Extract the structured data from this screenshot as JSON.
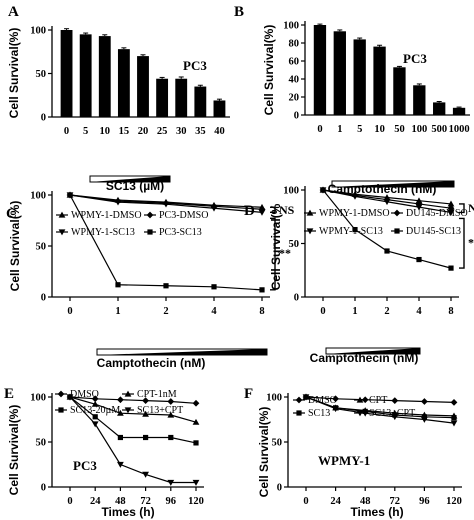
{
  "chart_data": [
    {
      "panel": "A",
      "type": "bar",
      "ylabel": "Cell Survival(%)",
      "xlabel": "SC13 (µM)",
      "annotation": "PC3",
      "categories": [
        "0",
        "5",
        "10",
        "15",
        "20",
        "25",
        "30",
        "35",
        "40"
      ],
      "values": [
        100,
        95,
        93,
        78,
        70,
        44,
        44,
        35,
        19
      ],
      "errors": [
        1.5,
        1.5,
        1.5,
        1.5,
        1.5,
        1.5,
        2,
        1.5,
        1.5
      ],
      "ylim": [
        0,
        100
      ],
      "yticks": [
        "0",
        "50",
        "100"
      ],
      "gradient_bar": true
    },
    {
      "panel": "B",
      "type": "bar",
      "ylabel": "Cell Survival(%)",
      "xlabel": "Camptothecin (nM)",
      "annotation": "PC3",
      "categories": [
        "0",
        "1",
        "5",
        "10",
        "50",
        "100",
        "500",
        "1000"
      ],
      "values": [
        100,
        93,
        84,
        76,
        53,
        33,
        14,
        8
      ],
      "errors": [
        1,
        1.5,
        1.5,
        1.5,
        1,
        1.5,
        1,
        0.8
      ],
      "ylim": [
        0,
        100
      ],
      "yticks": [
        "0",
        "20",
        "40",
        "60",
        "80",
        "100"
      ],
      "gradient_bar": true
    },
    {
      "panel": "C",
      "type": "line",
      "ylabel": "Cell Survival(%)",
      "xlabel": "Camptothecin (nM)",
      "x": [
        "0",
        "1",
        "2",
        "4",
        "8"
      ],
      "ylim": [
        0,
        100
      ],
      "yticks": [
        "0",
        "50",
        "100"
      ],
      "series": [
        {
          "name": "WPMY-1-DMSO",
          "marker": "triangle-up",
          "values": [
            100,
            95,
            93,
            90,
            88
          ]
        },
        {
          "name": "PC3-DMSO",
          "marker": "diamond",
          "values": [
            100,
            94,
            92,
            89,
            86
          ]
        },
        {
          "name": "WPMY-1-SC13",
          "marker": "triangle-down",
          "values": [
            100,
            93,
            91,
            87,
            83
          ]
        },
        {
          "name": "PC3-SC13",
          "marker": "square",
          "values": [
            100,
            12,
            11,
            10,
            7
          ]
        }
      ],
      "brackets": [
        "NS",
        "**"
      ],
      "gradient_bar": true
    },
    {
      "panel": "D",
      "type": "line",
      "ylabel": "Cell Survival(%",
      "xlabel": "Camptothecin (nM)",
      "x": [
        "0",
        "1",
        "2",
        "4",
        "8"
      ],
      "ylim": [
        0,
        100
      ],
      "yticks": [
        "0",
        "50",
        "100"
      ],
      "series": [
        {
          "name": "WPMY-1-DMSO",
          "marker": "triangle-up",
          "values": [
            100,
            96,
            93,
            90,
            87
          ]
        },
        {
          "name": "DU145-DMSO",
          "marker": "diamond",
          "values": [
            100,
            95,
            91,
            87,
            83
          ]
        },
        {
          "name": "WPMY-1-SC13",
          "marker": "triangle-down",
          "values": [
            100,
            94,
            89,
            84,
            79
          ]
        },
        {
          "name": "DU145-SC13",
          "marker": "square",
          "values": [
            100,
            63,
            43,
            35,
            27
          ]
        }
      ],
      "brackets": [
        "NS",
        "*"
      ],
      "gradient_bar": true
    },
    {
      "panel": "E",
      "type": "line",
      "ylabel": "Cell Survival(%)",
      "xlabel": "Times (h)",
      "annotation": "PC3",
      "x": [
        "0",
        "24",
        "48",
        "72",
        "96",
        "120"
      ],
      "ylim": [
        0,
        100
      ],
      "yticks": [
        "0",
        "50",
        "100"
      ],
      "series": [
        {
          "name": "DMSO",
          "marker": "diamond",
          "values": [
            100,
            98,
            97,
            96,
            95,
            93
          ]
        },
        {
          "name": "CPT-1nM",
          "marker": "triangle-up",
          "values": [
            100,
            92,
            82,
            81,
            80,
            72
          ]
        },
        {
          "name": "SC13-20µM",
          "marker": "square",
          "values": [
            100,
            78,
            55,
            55,
            55,
            49
          ]
        },
        {
          "name": "SC13+CPT",
          "marker": "triangle-down",
          "values": [
            100,
            70,
            25,
            14,
            5,
            5
          ]
        }
      ]
    },
    {
      "panel": "F",
      "type": "line",
      "ylabel": "Cell Survival(%)",
      "xlabel": "Times (h)",
      "annotation": "WPMY-1",
      "x": [
        "0",
        "24",
        "48",
        "72",
        "96",
        "120"
      ],
      "ylim": [
        0,
        100
      ],
      "yticks": [
        "0",
        "50",
        "100"
      ],
      "series": [
        {
          "name": "DMSO",
          "marker": "diamond",
          "values": [
            100,
            98,
            97,
            96,
            95,
            94
          ]
        },
        {
          "name": "CPT",
          "marker": "triangle-up",
          "values": [
            100,
            88,
            85,
            82,
            80,
            79
          ]
        },
        {
          "name": "SC13",
          "marker": "square",
          "values": [
            100,
            88,
            84,
            80,
            78,
            77
          ]
        },
        {
          "name": "SC13+CPT",
          "marker": "triangle-down",
          "values": [
            100,
            87,
            82,
            78,
            75,
            71
          ]
        }
      ]
    }
  ]
}
